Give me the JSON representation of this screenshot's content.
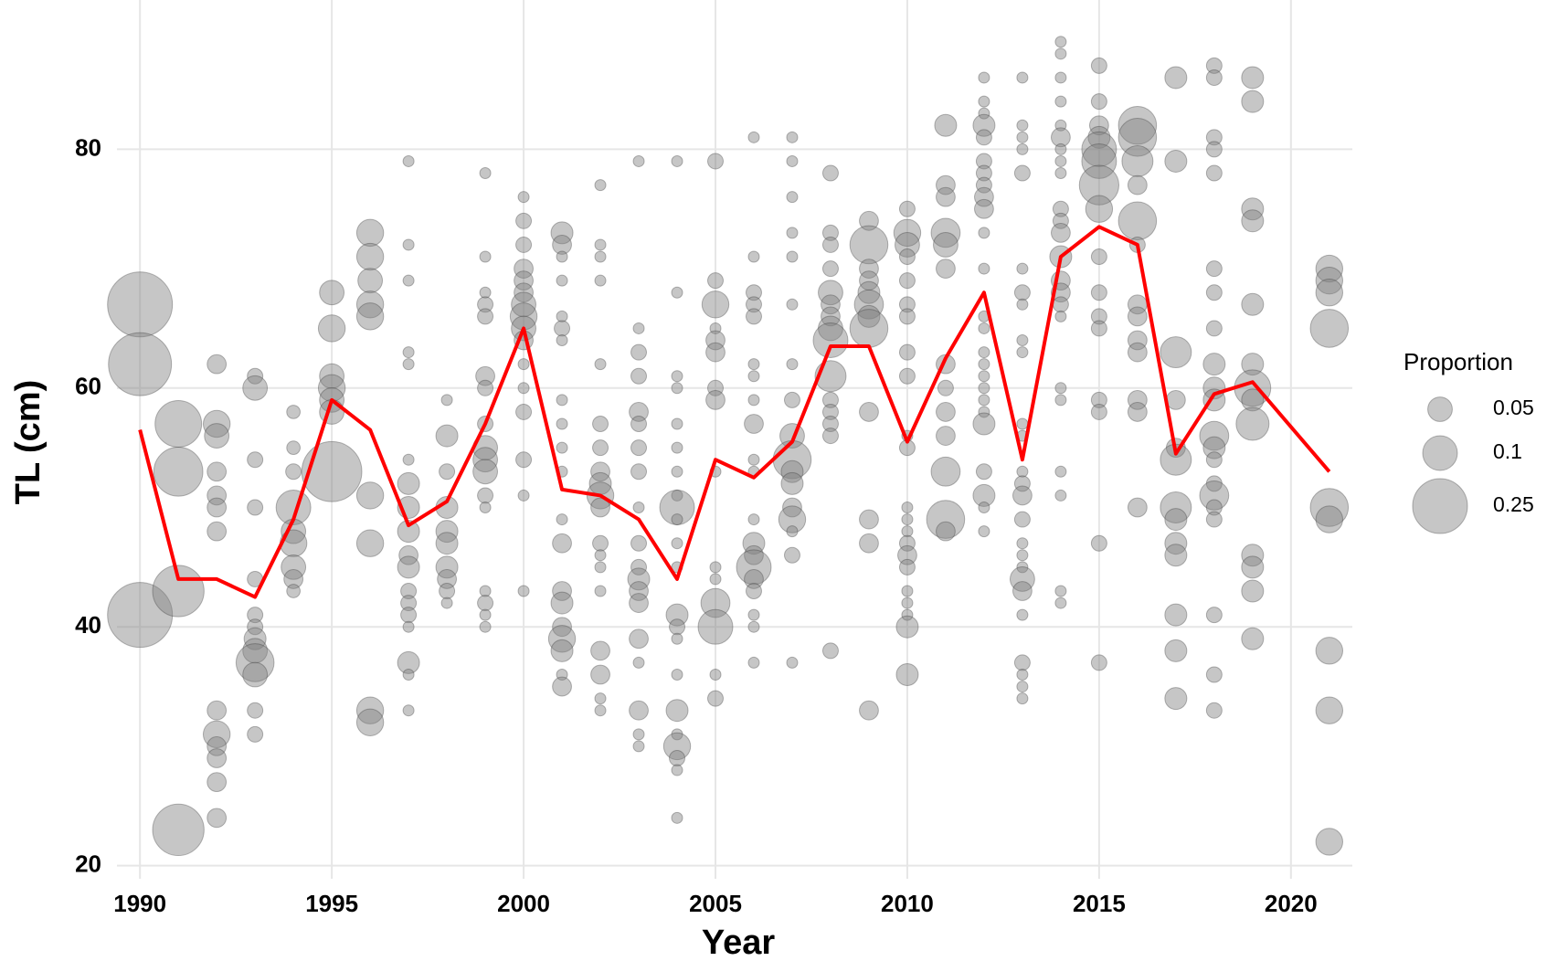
{
  "chart_data": {
    "type": "bubble",
    "x_label": "Year",
    "y_label": "TL (cm)",
    "xlim": [
      1989.4,
      2021.6
    ],
    "xticks": [
      1990,
      1995,
      2000,
      2005,
      2010,
      2015,
      2020
    ],
    "ylim": [
      18.9,
      92.5
    ],
    "yticks": [
      20,
      40,
      60,
      80
    ],
    "grid": true,
    "bubble_color": "#808080",
    "legend": {
      "title": "Proportion",
      "sizes": [
        0.05,
        0.1,
        0.25
      ],
      "position": "right"
    },
    "line": {
      "color": "#ff0000",
      "x": [
        1990,
        1991,
        1992,
        1993,
        1994,
        1995,
        1996,
        1997,
        1998,
        1999,
        2000,
        2001,
        2002,
        2003,
        2004,
        2005,
        2006,
        2007,
        2008,
        2009,
        2010,
        2011,
        2012,
        2013,
        2014,
        2015,
        2016,
        2017,
        2018,
        2019,
        2021
      ],
      "values": [
        56.5,
        44,
        44,
        42.5,
        49,
        59,
        56.5,
        48.5,
        50.5,
        57,
        65,
        51.5,
        51,
        49,
        44,
        54,
        52.5,
        55.5,
        63.5,
        63.5,
        55.5,
        62.5,
        68,
        54,
        71,
        73.5,
        72,
        54.5,
        59.5,
        60.5,
        53
      ]
    },
    "bubbles": [
      {
        "x": 1990,
        "y": [
          67,
          62,
          41
        ],
        "size": [
          0.35,
          0.33,
          0.35
        ]
      },
      {
        "x": 1991,
        "y": [
          57,
          53,
          43,
          23
        ],
        "size": [
          0.18,
          0.2,
          0.22,
          0.22
        ]
      },
      {
        "x": 1992,
        "y": [
          62,
          57,
          56,
          53,
          51,
          50,
          48,
          33,
          31,
          30,
          29,
          27,
          24
        ],
        "size": [
          0.03,
          0.06,
          0.05,
          0.03,
          0.03,
          0.03,
          0.03,
          0.03,
          0.06,
          0.03,
          0.03,
          0.03,
          0.03
        ]
      },
      {
        "x": 1993,
        "y": [
          61,
          60,
          54,
          50,
          44,
          41,
          40,
          39,
          38,
          37,
          36,
          33,
          31
        ],
        "size": [
          0.02,
          0.05,
          0.02,
          0.02,
          0.02,
          0.02,
          0.02,
          0.04,
          0.05,
          0.12,
          0.05,
          0.02,
          0.02
        ]
      },
      {
        "x": 1994,
        "y": [
          58,
          55,
          53,
          50,
          48,
          47,
          45,
          44,
          43
        ],
        "size": [
          0.015,
          0.015,
          0.02,
          0.1,
          0.05,
          0.06,
          0.05,
          0.03,
          0.015
        ]
      },
      {
        "x": 1995,
        "y": [
          68,
          65,
          61,
          60,
          59,
          58,
          53
        ],
        "size": [
          0.05,
          0.06,
          0.05,
          0.06,
          0.05,
          0.05,
          0.3
        ]
      },
      {
        "x": 1996,
        "y": [
          73,
          71,
          69,
          67,
          66,
          51,
          47,
          33,
          32
        ],
        "size": [
          0.06,
          0.06,
          0.05,
          0.06,
          0.06,
          0.06,
          0.06,
          0.06,
          0.06
        ]
      },
      {
        "x": 1997,
        "y": [
          79,
          72,
          69,
          63,
          62,
          54,
          52,
          50,
          48,
          46,
          45,
          43,
          42,
          41,
          40,
          37,
          36,
          33
        ],
        "size": [
          0.01,
          0.01,
          0.01,
          0.01,
          0.01,
          0.01,
          0.04,
          0.04,
          0.04,
          0.03,
          0.04,
          0.02,
          0.02,
          0.02,
          0.01,
          0.04,
          0.01,
          0.01
        ]
      },
      {
        "x": 1998,
        "y": [
          59,
          56,
          53,
          50,
          48,
          47,
          45,
          44,
          43,
          42
        ],
        "size": [
          0.01,
          0.04,
          0.02,
          0.04,
          0.04,
          0.04,
          0.04,
          0.03,
          0.02,
          0.01
        ]
      },
      {
        "x": 1999,
        "y": [
          78,
          71,
          68,
          67,
          66,
          61,
          60,
          57,
          55,
          54,
          53,
          51,
          50,
          43,
          42,
          41,
          40
        ],
        "size": [
          0.01,
          0.01,
          0.01,
          0.02,
          0.02,
          0.03,
          0.02,
          0.02,
          0.05,
          0.05,
          0.05,
          0.02,
          0.01,
          0.01,
          0.02,
          0.01,
          0.01
        ]
      },
      {
        "x": 2000,
        "y": [
          76,
          74,
          72,
          70,
          69,
          68,
          67,
          66,
          65,
          64,
          62,
          60,
          58,
          54,
          51,
          43
        ],
        "size": [
          0.01,
          0.02,
          0.02,
          0.03,
          0.03,
          0.03,
          0.05,
          0.06,
          0.05,
          0.03,
          0.01,
          0.01,
          0.02,
          0.02,
          0.01,
          0.01
        ]
      },
      {
        "x": 2001,
        "y": [
          73,
          72,
          71,
          69,
          66,
          65,
          64,
          59,
          57,
          55,
          53,
          49,
          47,
          43,
          42,
          40,
          39,
          38,
          36,
          35
        ],
        "size": [
          0.04,
          0.03,
          0.01,
          0.01,
          0.01,
          0.02,
          0.01,
          0.01,
          0.01,
          0.01,
          0.01,
          0.01,
          0.03,
          0.03,
          0.04,
          0.03,
          0.06,
          0.04,
          0.01,
          0.03
        ]
      },
      {
        "x": 2002,
        "y": [
          77,
          72,
          71,
          69,
          62,
          57,
          55,
          53,
          52,
          51,
          50,
          47,
          46,
          45,
          43,
          38,
          36,
          34,
          33
        ],
        "size": [
          0.01,
          0.01,
          0.01,
          0.01,
          0.01,
          0.02,
          0.02,
          0.03,
          0.04,
          0.06,
          0.03,
          0.02,
          0.01,
          0.01,
          0.01,
          0.03,
          0.03,
          0.01,
          0.01
        ]
      },
      {
        "x": 2003,
        "y": [
          79,
          65,
          63,
          61,
          58,
          57,
          55,
          53,
          50,
          47,
          45,
          44,
          43,
          42,
          39,
          37,
          33,
          31,
          30
        ],
        "size": [
          0.01,
          0.01,
          0.02,
          0.02,
          0.03,
          0.02,
          0.02,
          0.02,
          0.01,
          0.02,
          0.02,
          0.04,
          0.03,
          0.03,
          0.03,
          0.01,
          0.03,
          0.01,
          0.01
        ]
      },
      {
        "x": 2004,
        "y": [
          79,
          68,
          61,
          60,
          57,
          55,
          53,
          51,
          50,
          49,
          47,
          45,
          41,
          40,
          39,
          36,
          33,
          31,
          30,
          29,
          28,
          24
        ],
        "size": [
          0.01,
          0.01,
          0.01,
          0.01,
          0.01,
          0.01,
          0.01,
          0.01,
          0.1,
          0.01,
          0.01,
          0.01,
          0.04,
          0.02,
          0.01,
          0.01,
          0.04,
          0.01,
          0.06,
          0.02,
          0.01,
          0.01
        ]
      },
      {
        "x": 2005,
        "y": [
          79,
          69,
          67,
          65,
          64,
          63,
          60,
          59,
          53,
          45,
          44,
          42,
          40,
          36,
          34
        ],
        "size": [
          0.02,
          0.02,
          0.06,
          0.01,
          0.03,
          0.03,
          0.02,
          0.03,
          0.01,
          0.01,
          0.01,
          0.07,
          0.1,
          0.01,
          0.02
        ]
      },
      {
        "x": 2006,
        "y": [
          81,
          71,
          68,
          67,
          66,
          62,
          61,
          59,
          57,
          54,
          53,
          49,
          47,
          46,
          45,
          44,
          43,
          41,
          40,
          37
        ],
        "size": [
          0.01,
          0.01,
          0.02,
          0.02,
          0.02,
          0.01,
          0.01,
          0.01,
          0.03,
          0.01,
          0.01,
          0.01,
          0.04,
          0.03,
          0.1,
          0.03,
          0.02,
          0.01,
          0.01,
          0.01
        ]
      },
      {
        "x": 2007,
        "y": [
          81,
          79,
          76,
          73,
          71,
          67,
          62,
          59,
          56,
          54,
          53,
          52,
          50,
          49,
          48,
          46,
          37
        ],
        "size": [
          0.01,
          0.01,
          0.01,
          0.01,
          0.01,
          0.01,
          0.01,
          0.02,
          0.05,
          0.12,
          0.04,
          0.04,
          0.03,
          0.06,
          0.01,
          0.02,
          0.01
        ]
      },
      {
        "x": 2008,
        "y": [
          78,
          73,
          72,
          70,
          68,
          67,
          66,
          65,
          64,
          61,
          59,
          58,
          57,
          56,
          38
        ],
        "size": [
          0.02,
          0.02,
          0.02,
          0.02,
          0.05,
          0.03,
          0.03,
          0.05,
          0.1,
          0.08,
          0.02,
          0.02,
          0.02,
          0.02,
          0.02
        ]
      },
      {
        "x": 2009,
        "y": [
          74,
          72,
          70,
          69,
          68,
          67,
          66,
          65,
          58,
          49,
          47,
          33
        ],
        "size": [
          0.03,
          0.12,
          0.03,
          0.03,
          0.04,
          0.07,
          0.04,
          0.12,
          0.03,
          0.03,
          0.03,
          0.03
        ]
      },
      {
        "x": 2010,
        "y": [
          75,
          73,
          72,
          71,
          69,
          67,
          66,
          63,
          61,
          56,
          55,
          50,
          49,
          48,
          47,
          46,
          45,
          43,
          42,
          41,
          40,
          36
        ],
        "size": [
          0.02,
          0.06,
          0.05,
          0.02,
          0.02,
          0.02,
          0.02,
          0.02,
          0.02,
          0.01,
          0.02,
          0.01,
          0.01,
          0.01,
          0.02,
          0.03,
          0.02,
          0.01,
          0.01,
          0.01,
          0.04,
          0.04
        ]
      },
      {
        "x": 2011,
        "y": [
          82,
          77,
          76,
          73,
          72,
          70,
          62,
          60,
          58,
          56,
          53,
          49,
          48
        ],
        "size": [
          0.04,
          0.03,
          0.03,
          0.07,
          0.05,
          0.03,
          0.03,
          0.02,
          0.03,
          0.03,
          0.07,
          0.12,
          0.03
        ]
      },
      {
        "x": 2012,
        "y": [
          86,
          84,
          83,
          82,
          81,
          79,
          78,
          77,
          76,
          75,
          73,
          70,
          66,
          65,
          63,
          62,
          61,
          60,
          59,
          58,
          57,
          53,
          51,
          50,
          48
        ],
        "size": [
          0.01,
          0.01,
          0.01,
          0.04,
          0.02,
          0.02,
          0.02,
          0.02,
          0.03,
          0.03,
          0.01,
          0.01,
          0.01,
          0.01,
          0.01,
          0.01,
          0.01,
          0.01,
          0.01,
          0.01,
          0.04,
          0.02,
          0.04,
          0.01,
          0.01
        ]
      },
      {
        "x": 2013,
        "y": [
          86,
          82,
          81,
          80,
          78,
          70,
          68,
          67,
          64,
          63,
          57,
          56,
          53,
          52,
          51,
          49,
          47,
          46,
          45,
          44,
          43,
          41,
          37,
          36,
          35,
          34
        ],
        "size": [
          0.01,
          0.01,
          0.01,
          0.01,
          0.02,
          0.01,
          0.02,
          0.01,
          0.01,
          0.01,
          0.01,
          0.01,
          0.01,
          0.02,
          0.03,
          0.02,
          0.01,
          0.01,
          0.01,
          0.05,
          0.03,
          0.01,
          0.02,
          0.01,
          0.01,
          0.01
        ]
      },
      {
        "x": 2014,
        "y": [
          89,
          88,
          86,
          84,
          82,
          81,
          80,
          79,
          78,
          75,
          74,
          73,
          71,
          69,
          68,
          67,
          66,
          60,
          59,
          53,
          51,
          43,
          42
        ],
        "size": [
          0.01,
          0.01,
          0.01,
          0.01,
          0.01,
          0.03,
          0.01,
          0.01,
          0.01,
          0.02,
          0.02,
          0.03,
          0.04,
          0.03,
          0.03,
          0.02,
          0.01,
          0.01,
          0.01,
          0.01,
          0.01,
          0.01,
          0.01
        ]
      },
      {
        "x": 2015,
        "y": [
          87,
          84,
          82,
          81,
          80,
          79,
          77,
          75,
          71,
          68,
          66,
          65,
          59,
          58,
          47,
          37
        ],
        "size": [
          0.02,
          0.02,
          0.03,
          0.04,
          0.1,
          0.1,
          0.13,
          0.06,
          0.02,
          0.02,
          0.02,
          0.02,
          0.02,
          0.02,
          0.02,
          0.02
        ]
      },
      {
        "x": 2016,
        "y": [
          82,
          81,
          79,
          77,
          74,
          72,
          67,
          66,
          64,
          63,
          59,
          58,
          50
        ],
        "size": [
          0.12,
          0.12,
          0.08,
          0.03,
          0.12,
          0.02,
          0.03,
          0.03,
          0.03,
          0.03,
          0.03,
          0.03,
          0.03
        ]
      },
      {
        "x": 2017,
        "y": [
          86,
          79,
          63,
          59,
          55,
          54,
          50,
          49,
          47,
          46,
          41,
          38,
          34
        ],
        "size": [
          0.04,
          0.04,
          0.08,
          0.03,
          0.03,
          0.08,
          0.08,
          0.04,
          0.04,
          0.04,
          0.04,
          0.04,
          0.04
        ]
      },
      {
        "x": 2018,
        "y": [
          87,
          86,
          81,
          80,
          78,
          70,
          68,
          65,
          62,
          60,
          59,
          56,
          55,
          54,
          52,
          51,
          50,
          49,
          41,
          36,
          33
        ],
        "size": [
          0.02,
          0.02,
          0.02,
          0.02,
          0.02,
          0.02,
          0.02,
          0.02,
          0.04,
          0.04,
          0.04,
          0.07,
          0.04,
          0.02,
          0.02,
          0.07,
          0.02,
          0.02,
          0.02,
          0.02,
          0.02
        ]
      },
      {
        "x": 2019,
        "y": [
          86,
          84,
          75,
          74,
          67,
          62,
          60,
          59,
          57,
          46,
          45,
          43,
          39
        ],
        "size": [
          0.04,
          0.04,
          0.04,
          0.04,
          0.04,
          0.04,
          0.11,
          0.04,
          0.09,
          0.04,
          0.04,
          0.04,
          0.04
        ]
      },
      {
        "x": 2021,
        "y": [
          70,
          69,
          68,
          65,
          50,
          49,
          38,
          33,
          22
        ],
        "size": [
          0.06,
          0.06,
          0.06,
          0.12,
          0.12,
          0.06,
          0.06,
          0.06,
          0.06
        ]
      }
    ]
  }
}
